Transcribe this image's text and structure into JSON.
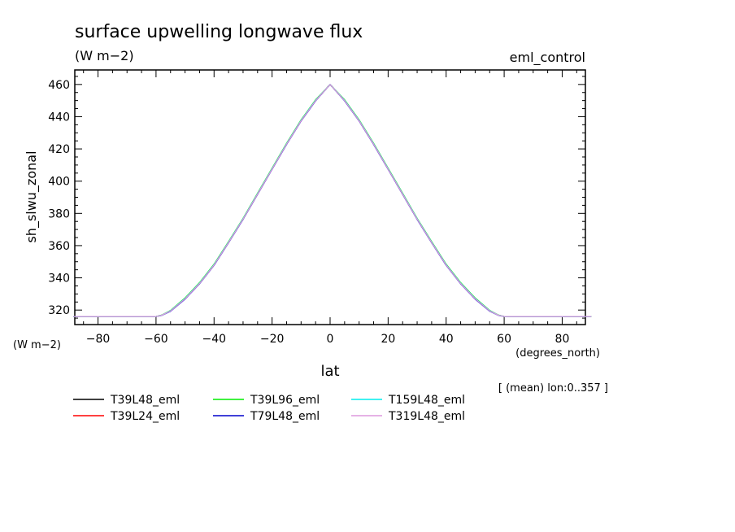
{
  "chart_data": {
    "type": "line",
    "title": "surface upwelling longwave flux",
    "subtitle": "(W m−2)",
    "experiment": "eml_control",
    "xlabel": "lat",
    "xunits": "(degrees_north)",
    "ylabel": "sh_slwu_zonal",
    "yunits": "(W m−2)",
    "annotation": "[ (mean) lon:0..357 ]",
    "xlim": [
      -88,
      88
    ],
    "ylim": [
      311,
      469
    ],
    "xticks": [
      -80,
      -60,
      -40,
      -20,
      0,
      20,
      40,
      60,
      80
    ],
    "yticks": [
      320,
      340,
      360,
      380,
      400,
      420,
      440,
      460
    ],
    "grid": false,
    "legend_position": "below",
    "x": [
      -90,
      -80,
      -70,
      -60,
      -58,
      -55,
      -50,
      -45,
      -40,
      -35,
      -30,
      -25,
      -20,
      -15,
      -10,
      -5,
      0,
      5,
      10,
      15,
      20,
      25,
      30,
      35,
      40,
      45,
      50,
      55,
      58,
      60,
      70,
      80,
      90
    ],
    "series": [
      {
        "name": "T39L48_eml",
        "color": "#000000",
        "values": [
          316,
          316,
          316,
          316,
          316.8,
          319.5,
          327,
          336.5,
          348,
          362,
          376.5,
          392,
          407.5,
          423,
          437.5,
          450,
          460,
          450,
          437.5,
          423,
          407.5,
          392,
          376.5,
          362,
          348,
          336.5,
          327,
          319.5,
          316.8,
          316,
          316,
          316,
          316
        ]
      },
      {
        "name": "T39L24_eml",
        "color": "#ff0000",
        "values": [
          316,
          316,
          316,
          316,
          316.8,
          319.5,
          327,
          336.5,
          348,
          362,
          376.5,
          392,
          407.5,
          423,
          437.5,
          450,
          460,
          450,
          437.5,
          423,
          407.5,
          392,
          376.5,
          362,
          348,
          336.5,
          327,
          319.5,
          316.8,
          316,
          316,
          316,
          316
        ]
      },
      {
        "name": "T39L96_eml",
        "color": "#00ee00",
        "values": [
          316,
          316,
          316,
          316,
          316.9,
          319.8,
          327.5,
          337,
          348.5,
          362.5,
          377,
          392.5,
          408,
          423.5,
          438,
          450.5,
          460,
          450.5,
          438,
          423.5,
          408,
          392.5,
          377,
          362.5,
          348.5,
          337,
          327.5,
          319.8,
          316.9,
          316,
          316,
          316,
          316
        ]
      },
      {
        "name": "T79L48_eml",
        "color": "#0000cc",
        "values": [
          316,
          316,
          316,
          316,
          316.7,
          319.3,
          326.8,
          336.3,
          347.8,
          361.8,
          376.3,
          391.8,
          407.3,
          422.8,
          437.3,
          449.8,
          460,
          449.8,
          437.3,
          422.8,
          407.3,
          391.8,
          376.3,
          361.8,
          347.8,
          336.3,
          326.8,
          319.3,
          316.7,
          316,
          316,
          316,
          316
        ]
      },
      {
        "name": "T159L48_eml",
        "color": "#00eeee",
        "values": [
          316,
          316,
          316,
          316,
          316.8,
          319.6,
          327.2,
          336.7,
          348.2,
          362.2,
          376.7,
          392.2,
          407.7,
          423.2,
          437.7,
          450.2,
          460,
          450.2,
          437.7,
          423.2,
          407.7,
          392.2,
          376.7,
          362.2,
          348.2,
          336.7,
          327.2,
          319.6,
          316.8,
          316,
          316,
          316,
          316
        ]
      },
      {
        "name": "T319L48_eml",
        "color": "#dd99dd",
        "values": [
          316,
          316,
          316,
          316,
          316.8,
          319.5,
          327,
          336.5,
          348,
          362,
          376.5,
          392,
          407.5,
          423,
          437.5,
          450,
          460,
          450,
          437.5,
          423,
          407.5,
          392,
          376.5,
          362,
          348,
          336.5,
          327,
          319.5,
          316.8,
          316,
          316,
          316,
          316
        ]
      }
    ]
  }
}
